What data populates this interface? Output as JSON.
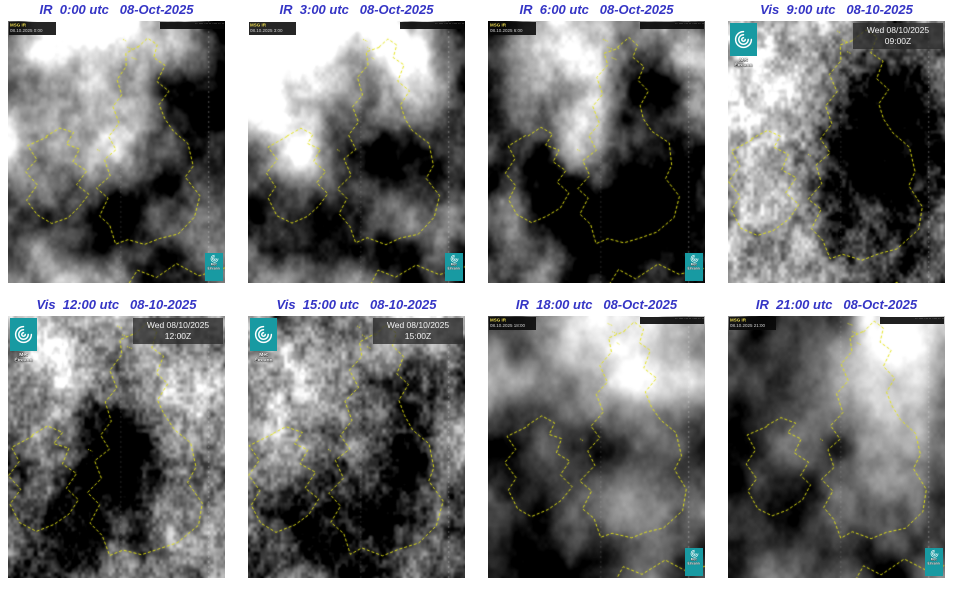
{
  "colors": {
    "title_blue": "#3535c5",
    "coastline_yellow": "#e4e414",
    "logo_teal": "#189aa2",
    "page_background": "#ffffff"
  },
  "logo": {
    "line1": "Met",
    "line2": "Éireann"
  },
  "panels": [
    {
      "type": "IR",
      "title": "IR  0:00 utc   08-Oct-2025",
      "corner_label": {
        "line1": "MSG IR",
        "line2": "08.10.2025  0:00"
      },
      "annotation_bar": "·· ···· ··· ·· ···· ·· ···"
    },
    {
      "type": "IR",
      "title": "IR  3:00 utc   08-Oct-2025",
      "corner_label": {
        "line1": "MSG IR",
        "line2": "08.10.2025  3:00"
      },
      "annotation_bar": "·· ···· ··· ·· ···· ·· ···"
    },
    {
      "type": "IR",
      "title": "IR  6:00 utc   08-Oct-2025",
      "corner_label": {
        "line1": "MSG IR",
        "line2": "08.10.2025  6:00"
      },
      "annotation_bar": "·· ···· ··· ·· ···· ·· ···"
    },
    {
      "type": "Vis",
      "title": "Vis  9:00 utc   08-10-2025",
      "timestamp": {
        "line1": "Wed 08/10/2025",
        "line2": "09:00Z"
      }
    },
    {
      "type": "Vis",
      "title": "Vis  12:00 utc   08-10-2025",
      "timestamp": {
        "line1": "Wed 08/10/2025",
        "line2": "12:00Z"
      }
    },
    {
      "type": "Vis",
      "title": "Vis  15:00 utc   08-10-2025",
      "timestamp": {
        "line1": "Wed 08/10/2025",
        "line2": "15:00Z"
      }
    },
    {
      "type": "IR",
      "title": "IR  18:00 utc   08-Oct-2025",
      "corner_label": {
        "line1": "MSG IR",
        "line2": "08.10.2025 18:00"
      },
      "annotation_bar": "·· ···· ··· ·· ···· ·· ···"
    },
    {
      "type": "IR",
      "title": "IR  21:00 utc   08-Oct-2025",
      "corner_label": {
        "line1": "MSG IR",
        "line2": "08.10.2025 21:00"
      },
      "annotation_bar": "·· ···· ··· ·· ···· ·· ···"
    }
  ]
}
